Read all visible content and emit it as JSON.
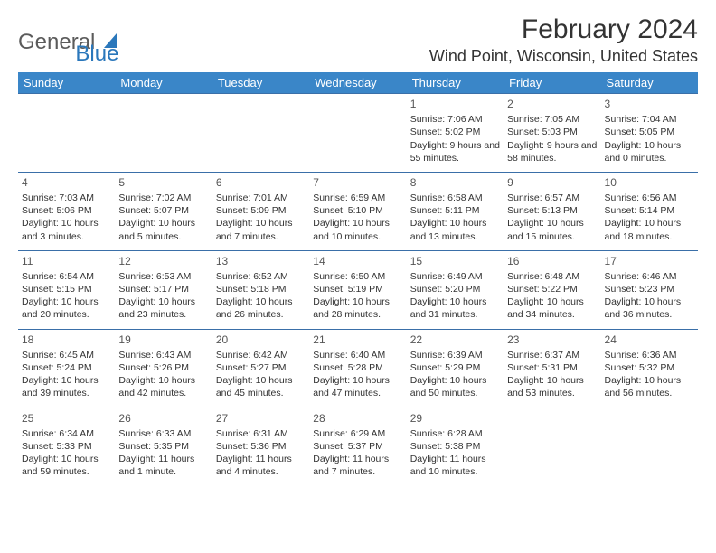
{
  "brand": {
    "part1": "General",
    "part2": "Blue"
  },
  "title": "February 2024",
  "location": "Wind Point, Wisconsin, United States",
  "colors": {
    "header_bg": "#3a86c8",
    "header_text": "#ffffff",
    "cell_border": "#3a6fa8",
    "body_text": "#333333",
    "logo_gray": "#5b5b5b",
    "logo_blue": "#2a77bb"
  },
  "weekdays": [
    "Sunday",
    "Monday",
    "Tuesday",
    "Wednesday",
    "Thursday",
    "Friday",
    "Saturday"
  ],
  "first_weekday_index": 4,
  "days": [
    {
      "n": 1,
      "sunrise": "7:06 AM",
      "sunset": "5:02 PM",
      "daylight": "9 hours and 55 minutes."
    },
    {
      "n": 2,
      "sunrise": "7:05 AM",
      "sunset": "5:03 PM",
      "daylight": "9 hours and 58 minutes."
    },
    {
      "n": 3,
      "sunrise": "7:04 AM",
      "sunset": "5:05 PM",
      "daylight": "10 hours and 0 minutes."
    },
    {
      "n": 4,
      "sunrise": "7:03 AM",
      "sunset": "5:06 PM",
      "daylight": "10 hours and 3 minutes."
    },
    {
      "n": 5,
      "sunrise": "7:02 AM",
      "sunset": "5:07 PM",
      "daylight": "10 hours and 5 minutes."
    },
    {
      "n": 6,
      "sunrise": "7:01 AM",
      "sunset": "5:09 PM",
      "daylight": "10 hours and 7 minutes."
    },
    {
      "n": 7,
      "sunrise": "6:59 AM",
      "sunset": "5:10 PM",
      "daylight": "10 hours and 10 minutes."
    },
    {
      "n": 8,
      "sunrise": "6:58 AM",
      "sunset": "5:11 PM",
      "daylight": "10 hours and 13 minutes."
    },
    {
      "n": 9,
      "sunrise": "6:57 AM",
      "sunset": "5:13 PM",
      "daylight": "10 hours and 15 minutes."
    },
    {
      "n": 10,
      "sunrise": "6:56 AM",
      "sunset": "5:14 PM",
      "daylight": "10 hours and 18 minutes."
    },
    {
      "n": 11,
      "sunrise": "6:54 AM",
      "sunset": "5:15 PM",
      "daylight": "10 hours and 20 minutes."
    },
    {
      "n": 12,
      "sunrise": "6:53 AM",
      "sunset": "5:17 PM",
      "daylight": "10 hours and 23 minutes."
    },
    {
      "n": 13,
      "sunrise": "6:52 AM",
      "sunset": "5:18 PM",
      "daylight": "10 hours and 26 minutes."
    },
    {
      "n": 14,
      "sunrise": "6:50 AM",
      "sunset": "5:19 PM",
      "daylight": "10 hours and 28 minutes."
    },
    {
      "n": 15,
      "sunrise": "6:49 AM",
      "sunset": "5:20 PM",
      "daylight": "10 hours and 31 minutes."
    },
    {
      "n": 16,
      "sunrise": "6:48 AM",
      "sunset": "5:22 PM",
      "daylight": "10 hours and 34 minutes."
    },
    {
      "n": 17,
      "sunrise": "6:46 AM",
      "sunset": "5:23 PM",
      "daylight": "10 hours and 36 minutes."
    },
    {
      "n": 18,
      "sunrise": "6:45 AM",
      "sunset": "5:24 PM",
      "daylight": "10 hours and 39 minutes."
    },
    {
      "n": 19,
      "sunrise": "6:43 AM",
      "sunset": "5:26 PM",
      "daylight": "10 hours and 42 minutes."
    },
    {
      "n": 20,
      "sunrise": "6:42 AM",
      "sunset": "5:27 PM",
      "daylight": "10 hours and 45 minutes."
    },
    {
      "n": 21,
      "sunrise": "6:40 AM",
      "sunset": "5:28 PM",
      "daylight": "10 hours and 47 minutes."
    },
    {
      "n": 22,
      "sunrise": "6:39 AM",
      "sunset": "5:29 PM",
      "daylight": "10 hours and 50 minutes."
    },
    {
      "n": 23,
      "sunrise": "6:37 AM",
      "sunset": "5:31 PM",
      "daylight": "10 hours and 53 minutes."
    },
    {
      "n": 24,
      "sunrise": "6:36 AM",
      "sunset": "5:32 PM",
      "daylight": "10 hours and 56 minutes."
    },
    {
      "n": 25,
      "sunrise": "6:34 AM",
      "sunset": "5:33 PM",
      "daylight": "10 hours and 59 minutes."
    },
    {
      "n": 26,
      "sunrise": "6:33 AM",
      "sunset": "5:35 PM",
      "daylight": "11 hours and 1 minute."
    },
    {
      "n": 27,
      "sunrise": "6:31 AM",
      "sunset": "5:36 PM",
      "daylight": "11 hours and 4 minutes."
    },
    {
      "n": 28,
      "sunrise": "6:29 AM",
      "sunset": "5:37 PM",
      "daylight": "11 hours and 7 minutes."
    },
    {
      "n": 29,
      "sunrise": "6:28 AM",
      "sunset": "5:38 PM",
      "daylight": "11 hours and 10 minutes."
    }
  ],
  "labels": {
    "sunrise": "Sunrise: ",
    "sunset": "Sunset: ",
    "daylight": "Daylight: "
  }
}
